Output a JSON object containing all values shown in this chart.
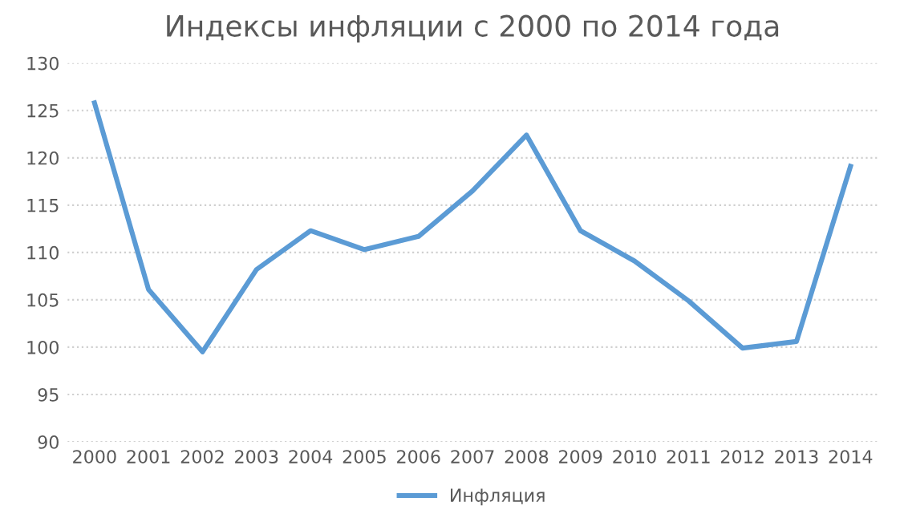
{
  "chart_data": {
    "type": "line",
    "title": "Индексы инфляции с 2000 по 2014 года",
    "categories": [
      "2000",
      "2001",
      "2002",
      "2003",
      "2004",
      "2005",
      "2006",
      "2007",
      "2008",
      "2009",
      "2010",
      "2011",
      "2012",
      "2013",
      "2014"
    ],
    "series": [
      {
        "name": "Инфляция",
        "color": "#5b9bd5",
        "values": [
          125.8,
          106.1,
          99.5,
          108.2,
          112.3,
          110.3,
          111.7,
          116.5,
          122.4,
          112.3,
          109.1,
          104.9,
          99.9,
          100.6,
          119.1
        ]
      }
    ],
    "ylim": [
      90,
      130
    ],
    "yticks": [
      90,
      95,
      100,
      105,
      110,
      115,
      120,
      125,
      130
    ],
    "grid": "y",
    "legend": "bottom",
    "marker": "none",
    "line_style": "solid"
  }
}
